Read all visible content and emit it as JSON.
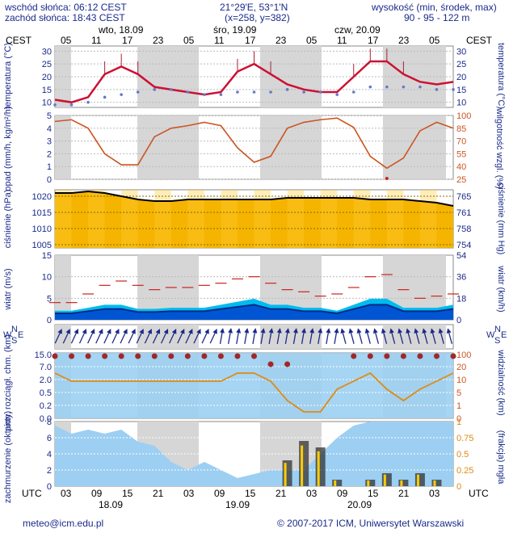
{
  "header": {
    "sunrise": "wschód słońca: 06:12 CEST",
    "sunset": "zachód słońca: 18:43 CEST",
    "coords": "21°29'E, 53°1'N",
    "grid": "(x=258, y=382)",
    "elev_label": "wysokość (min, środek, max)",
    "elev_values": "90 - 95 - 122 m"
  },
  "top_axis": {
    "tz": "CEST",
    "hours": [
      "05",
      "11",
      "17",
      "23",
      "05",
      "11",
      "17",
      "23",
      "05",
      "11",
      "17",
      "23",
      "05"
    ],
    "days": [
      "wto, 18.09",
      "śro, 19.09",
      "czw, 20.09"
    ]
  },
  "bottom_axis": {
    "tz": "UTC",
    "hours": [
      "03",
      "09",
      "15",
      "21",
      "03",
      "09",
      "15",
      "21",
      "03",
      "09",
      "15",
      "21",
      "03"
    ],
    "days": [
      "18.09",
      "19.09",
      "20.09"
    ]
  },
  "panels": {
    "temperature": {
      "left": "temperatura (°C)",
      "right": "temperatura (°C)",
      "ticks_left": [
        "10",
        "15",
        "20",
        "25",
        "30"
      ],
      "ticks_right": [
        "10",
        "15",
        "20",
        "25",
        "30"
      ]
    },
    "precip": {
      "left": "opad (mm/h, kg/m²/h)",
      "right": "wilgotność wzgl. (%)",
      "ticks_left": [
        "0",
        "1",
        "2",
        "3",
        "4",
        "5"
      ],
      "ticks_right": [
        "25",
        "40",
        "55",
        "70",
        "85",
        "100"
      ]
    },
    "pressure": {
      "left": "ciśnienie (hPa)",
      "right": "ciśnienie (mm Hg)",
      "ticks_left": [
        "1005",
        "1010",
        "1015",
        "1020"
      ],
      "ticks_right": [
        "754",
        "758",
        "761",
        "765"
      ]
    },
    "wind": {
      "left": "wiatr (m/s)",
      "right": "wiatr (km/h)",
      "ticks_left": [
        "0",
        "5",
        "10",
        "15"
      ],
      "ticks_right": [
        "0",
        "18",
        "36",
        "54"
      ]
    },
    "winddir": {
      "left_n": "N",
      "left_w": "W",
      "left_s": "S",
      "left_e": "E",
      "right_n": "N",
      "right_w": "W",
      "right_s": "S",
      "right_e": "E"
    },
    "cloudbase": {
      "left": "pion. rozciągł. chm. (km)",
      "right": "widzialność (km)",
      "ticks_left": [
        "0.0",
        "0.2",
        "0.5",
        "2.0",
        "7.0",
        "15.0"
      ],
      "ticks_right": [
        "0",
        "1",
        "5",
        "10",
        "20",
        "100"
      ]
    },
    "clouds": {
      "left": "zachmurzenie (oktanty)",
      "right": "(frakcja) mgła",
      "ticks_left": [
        "0",
        "2",
        "4",
        "6",
        "8"
      ],
      "ticks_right": [
        "0",
        "0.25",
        "0.5",
        "0.75",
        "1"
      ]
    }
  },
  "footer": {
    "email": "meteo@icm.edu.pl",
    "copyright": "© 2007-2017 ICM, Uniwersytet Warszawski"
  },
  "colors": {
    "label": "#1a2a8a",
    "night": "#d6d6d6",
    "temp_line": "#cc1133",
    "dew_dots": "#6677cc",
    "humidity": "#cc5522",
    "pressure_line": "#000000",
    "wind_dark": "#0044cc",
    "wind_light": "#00bbee",
    "cloud_sky": "#9ccff2",
    "cloud_dark": "#1f7fd8",
    "precip_bar": "#ffcc00"
  },
  "chart_data": [
    {
      "type": "line",
      "x": [
        "18.09 03",
        "18.09 06",
        "18.09 09",
        "18.09 12",
        "18.09 15",
        "18.09 18",
        "18.09 21",
        "19.09 00",
        "19.09 03",
        "19.09 06",
        "19.09 09",
        "19.09 12",
        "19.09 15",
        "19.09 18",
        "19.09 21",
        "20.09 00",
        "20.09 03",
        "20.09 06",
        "20.09 09",
        "20.09 12",
        "20.09 15",
        "20.09 18",
        "20.09 21",
        "21.09 00",
        "21.09 03"
      ],
      "series": [],
      "temperature_c": [
        11,
        10,
        12,
        21,
        24,
        21,
        16,
        15,
        14,
        13,
        14,
        22,
        25,
        21,
        17,
        15,
        14,
        14,
        20,
        26,
        26,
        21,
        18,
        17,
        18
      ],
      "dew_point_c": [
        9,
        9,
        10,
        12,
        13,
        14,
        15,
        15,
        14,
        13,
        13,
        14,
        14,
        14,
        15,
        14,
        14,
        13,
        14,
        16,
        16,
        16,
        16,
        15,
        15
      ],
      "ylim": [
        8,
        32
      ]
    },
    {
      "type": "line",
      "x": [
        "18.09 03",
        "18.09 06",
        "18.09 09",
        "18.09 12",
        "18.09 15",
        "18.09 18",
        "18.09 21",
        "19.09 00",
        "19.09 03",
        "19.09 06",
        "19.09 09",
        "19.09 12",
        "19.09 15",
        "19.09 18",
        "19.09 21",
        "20.09 00",
        "20.09 03",
        "20.09 06",
        "20.09 09",
        "20.09 12",
        "20.09 15",
        "20.09 18",
        "20.09 21",
        "21.09 00",
        "21.09 03"
      ],
      "humidity_pct": [
        93,
        95,
        85,
        55,
        42,
        42,
        75,
        85,
        88,
        92,
        88,
        62,
        45,
        52,
        85,
        92,
        95,
        97,
        86,
        52,
        38,
        50,
        82,
        92,
        85
      ],
      "precip_mm": [
        0,
        0,
        0,
        0,
        0,
        0,
        0,
        0,
        0,
        0,
        0,
        0,
        0,
        0,
        0,
        0,
        0,
        0,
        0,
        0,
        0.05,
        0,
        0,
        0,
        0
      ],
      "ylim_precip": [
        0,
        5
      ],
      "ylim_humidity": [
        25,
        100
      ]
    },
    {
      "type": "line",
      "x": [
        "18.09 03",
        "18.09 06",
        "18.09 09",
        "18.09 12",
        "18.09 15",
        "18.09 18",
        "18.09 21",
        "19.09 00",
        "19.09 03",
        "19.09 06",
        "19.09 09",
        "19.09 12",
        "19.09 15",
        "19.09 18",
        "19.09 21",
        "20.09 00",
        "20.09 03",
        "20.09 06",
        "20.09 09",
        "20.09 12",
        "20.09 15",
        "20.09 18",
        "20.09 21",
        "21.09 00",
        "21.09 03"
      ],
      "pressure_hpa": [
        1021,
        1021,
        1021.5,
        1021,
        1020,
        1019,
        1018.5,
        1018.5,
        1019,
        1019,
        1019,
        1019,
        1019,
        1019,
        1019.5,
        1019.5,
        1019.5,
        1019.5,
        1019.5,
        1019,
        1019,
        1019,
        1018.5,
        1018,
        1017
      ],
      "ylim": [
        1004,
        1022
      ]
    },
    {
      "type": "area",
      "x": [
        "18.09 03",
        "18.09 06",
        "18.09 09",
        "18.09 12",
        "18.09 15",
        "18.09 18",
        "18.09 21",
        "19.09 00",
        "19.09 03",
        "19.09 06",
        "19.09 09",
        "19.09 12",
        "19.09 15",
        "19.09 18",
        "19.09 21",
        "20.09 00",
        "20.09 03",
        "20.09 06",
        "20.09 09",
        "20.09 12",
        "20.09 15",
        "20.09 18",
        "20.09 21",
        "21.09 00",
        "21.09 03"
      ],
      "wind_ms": [
        1.5,
        1.5,
        2,
        2.5,
        2.5,
        1.8,
        1.8,
        2,
        2,
        2,
        2.5,
        3,
        3.5,
        2.5,
        2.5,
        2,
        2,
        1.5,
        2.5,
        3.5,
        3.5,
        2,
        2,
        2,
        2.5
      ],
      "gust_ms": [
        4,
        4,
        6,
        8,
        9,
        8,
        7,
        7.5,
        7.5,
        8,
        8.5,
        9.5,
        10,
        8.5,
        7,
        6.5,
        5.5,
        6,
        7.5,
        10,
        10.5,
        7,
        5,
        5.5,
        6
      ],
      "ylim": [
        0,
        15
      ]
    },
    {
      "type": "scatter",
      "x": [
        "18.09 03",
        "18.09 06",
        "18.09 09",
        "18.09 12",
        "18.09 15",
        "18.09 18",
        "18.09 21",
        "19.09 00",
        "19.09 03",
        "19.09 06",
        "19.09 09",
        "19.09 12",
        "19.09 15",
        "19.09 18",
        "19.09 21",
        "20.09 00",
        "20.09 03",
        "20.09 06",
        "20.09 09",
        "20.09 12",
        "20.09 15",
        "20.09 18",
        "20.09 21",
        "21.09 00",
        "21.09 03"
      ],
      "visibility_km": [
        7,
        5,
        6,
        6,
        6,
        5,
        5,
        6,
        5,
        5,
        6,
        7,
        7,
        6,
        1.5,
        0.5,
        0.5,
        3,
        6,
        7,
        4,
        1.5,
        3,
        5,
        7
      ],
      "cloud_extent_km": [
        15,
        15,
        15,
        15,
        15,
        15,
        15,
        15,
        15,
        15,
        15,
        15,
        15,
        10,
        10,
        null,
        null,
        null,
        15,
        15,
        15,
        15,
        15,
        15,
        15
      ]
    },
    {
      "type": "area",
      "x": [
        "18.09 03",
        "18.09 06",
        "18.09 09",
        "18.09 12",
        "18.09 15",
        "18.09 18",
        "18.09 21",
        "19.09 00",
        "19.09 03",
        "19.09 06",
        "19.09 09",
        "19.09 12",
        "19.09 15",
        "19.09 18",
        "19.09 21",
        "20.09 00",
        "20.09 03",
        "20.09 06",
        "20.09 09",
        "20.09 12",
        "20.09 15",
        "20.09 18",
        "20.09 21",
        "21.09 00",
        "21.09 03"
      ],
      "cloud_octants": [
        7.5,
        6.5,
        7,
        6.5,
        7,
        5.5,
        5,
        3,
        2,
        3,
        2,
        1,
        1.5,
        2,
        2,
        2,
        4,
        6,
        7.5,
        8,
        8,
        8,
        8,
        8,
        8
      ],
      "fog_fraction": [
        0,
        0,
        0,
        0,
        0,
        0,
        0,
        0,
        0,
        0,
        0,
        0,
        0,
        0,
        0.4,
        0.7,
        0.6,
        0.1,
        0,
        0.1,
        0.2,
        0.1,
        0.2,
        0.1,
        0
      ],
      "ylim_clouds": [
        0,
        8
      ],
      "ylim_fog": [
        0,
        1
      ]
    }
  ]
}
